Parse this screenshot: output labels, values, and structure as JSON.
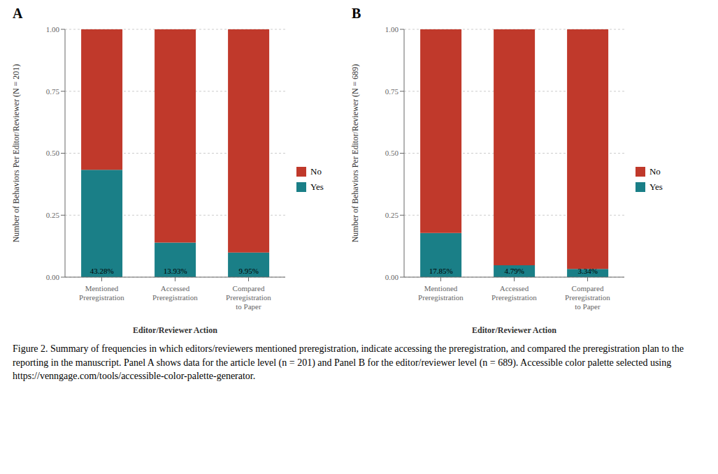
{
  "chart_data": [
    {
      "type": "bar",
      "title": "A",
      "x_label": "Editor/Reviewer Action",
      "y_label": "Number of Behaviors Per Editor/Reviewer (N = 201)",
      "categories": [
        "Mentioned\nPreregistration",
        "Accessed\nPreregistration",
        "Compared\nPreregistration\nto Paper"
      ],
      "series": [
        {
          "name": "Yes",
          "color": "#1A7F87",
          "values": [
            0.4328,
            0.1393,
            0.0995
          ],
          "value_labels": [
            "43.28%",
            "13.93%",
            "9.95%"
          ]
        },
        {
          "name": "No",
          "color": "#C0392B",
          "values": [
            0.5672,
            0.8607,
            0.9005
          ]
        }
      ],
      "stacked": true,
      "ylim": [
        0,
        1.0
      ],
      "yticks": [
        {
          "value": 0,
          "label": "0.00"
        },
        0.25,
        {
          "value": 0.5,
          "label": "0.50"
        },
        0.75,
        {
          "value": 1,
          "label": "1.00"
        }
      ],
      "grid": true,
      "legend": "right"
    },
    {
      "type": "bar",
      "title": "B",
      "x_label": "Editor/Reviewer Action",
      "y_label": "Number of Behaviors Per Editor/Reviewer (N = 689)",
      "categories": [
        "Mentioned\nPreregistration",
        "Accessed\nPreregistration",
        "Compared\nPreregistration\nto Paper"
      ],
      "series": [
        {
          "name": "Yes",
          "color": "#1A7F87",
          "values": [
            0.1785,
            0.0479,
            0.0334
          ],
          "value_labels": [
            "17.85%",
            "4.79%",
            "3.34%"
          ]
        },
        {
          "name": "No",
          "color": "#C0392B",
          "values": [
            0.8215,
            0.9521,
            0.9666
          ]
        }
      ],
      "stacked": true,
      "ylim": [
        0,
        1.0
      ],
      "yticks": [
        {
          "value": 0,
          "label": "0.00"
        },
        0.25,
        {
          "value": 0.5,
          "label": "0.50"
        },
        0.75,
        {
          "value": 1,
          "label": "1.00"
        }
      ],
      "grid": true,
      "legend": "right"
    }
  ],
  "caption": "Figure 2. Summary of frequencies in which editors/reviewers mentioned preregistration, indicate accessing the preregistration, and compared the preregistration plan to the reporting in the manuscript. Panel A shows data for the article level (n = 201) and Panel B for the editor/reviewer level (n = 689). Accessible color palette selected using https://venngage.com/tools/accessible-color-palette-generator."
}
